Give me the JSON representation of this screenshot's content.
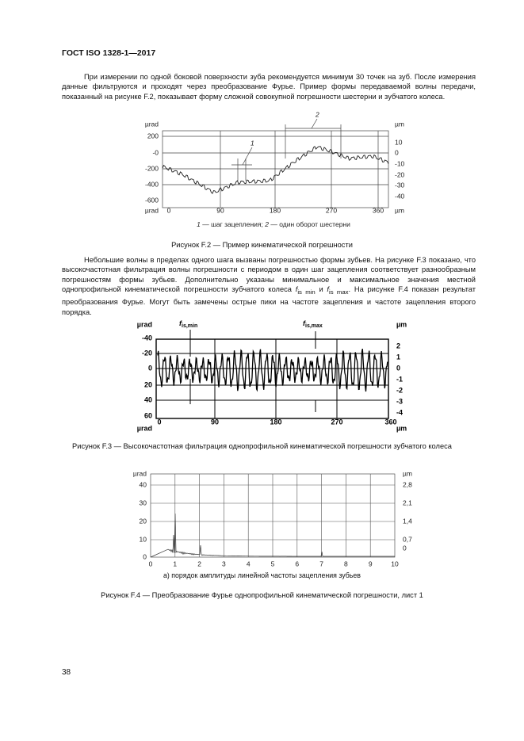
{
  "header": {
    "title": "ГОСТ ISO 1328-1—2017"
  },
  "paragraph1": "При измерении по одной боковой поверхности зуба рекомендуется минимум 30 точек на зуб. После измерения данные фильтруются и проходят через преобразование Фурье. Пример формы передаваемой волны передачи, показанный на рисунке F.2, показывает форму сложной совокупной погрешности шестерни и зубчатого колеса.",
  "figure_f2": {
    "y_left": [
      "µrad",
      "200",
      "-0",
      "-200",
      "-400",
      "-600",
      "µrad"
    ],
    "y_right": [
      "µm",
      "10",
      "0",
      "-10",
      "-20",
      "-30",
      "-40",
      "µm"
    ],
    "x": [
      "0",
      "90",
      "180",
      "270",
      "360"
    ],
    "markers": [
      "1",
      "2"
    ],
    "legend": {
      "m1": "1",
      "t1": " — шаг зацепления; ",
      "m2": "2",
      "t2": " — один оборот шестерни"
    },
    "caption": "Рисунок F.2 — Пример кинематической погрешности"
  },
  "paragraph2": {
    "before": "Небольшие волны в пределах одного шага вызваны погрешностью формы зубьев. На рисунке F.3 показано, что высокочастотная фильтрация волны погрешности с периодом в один шаг зацепления соответствует разнообразным погрешностям формы зубьев. Дополнительно указаны минимальное и максимальное значения местной однопрофильной кинематической погрешности зубчатого колеса ",
    "f1": "f",
    "sub1": "is min",
    "mid": " и ",
    "f2": "f",
    "sub2": "is max",
    "after": ". На рисунке F.4 показан результат преобразования Фурье. Могут быть замечены острые пики на частоте зацепления и частоте зацепления второго порядка."
  },
  "figure_f3": {
    "y_left": [
      "µrad",
      "-40",
      "-20",
      "0",
      "20",
      "40",
      "60",
      "µrad"
    ],
    "y_right": [
      "µm",
      "2",
      "1",
      "0",
      "-1",
      "-2",
      "-3",
      "-4",
      "µm"
    ],
    "x": [
      "0",
      "90",
      "180",
      "270",
      "360"
    ],
    "label_min": {
      "f": "f",
      "sub": "is,min"
    },
    "label_max": {
      "f": "f",
      "sub": "is,max"
    },
    "caption": "Рисунок F.3 — Высокочастотная фильтрация однопрофильной кинематической погрешности зубчатого колеса"
  },
  "figure_f4": {
    "y_left": [
      "µrad",
      "40",
      "30",
      "20",
      "10",
      "0"
    ],
    "y_right": [
      "µm",
      "2,8",
      "2,1",
      "1,4",
      "0,7",
      "0"
    ],
    "x": [
      "0",
      "1",
      "2",
      "3",
      "4",
      "5",
      "6",
      "7",
      "8",
      "9",
      "10"
    ],
    "subcaption": "а) порядок амплитуды линейной частоты зацепления зубьев",
    "caption": "Рисунок F.4 — Преобразование Фурье однопрофильной кинематической погрешности, лист 1"
  },
  "page_number": "38"
}
